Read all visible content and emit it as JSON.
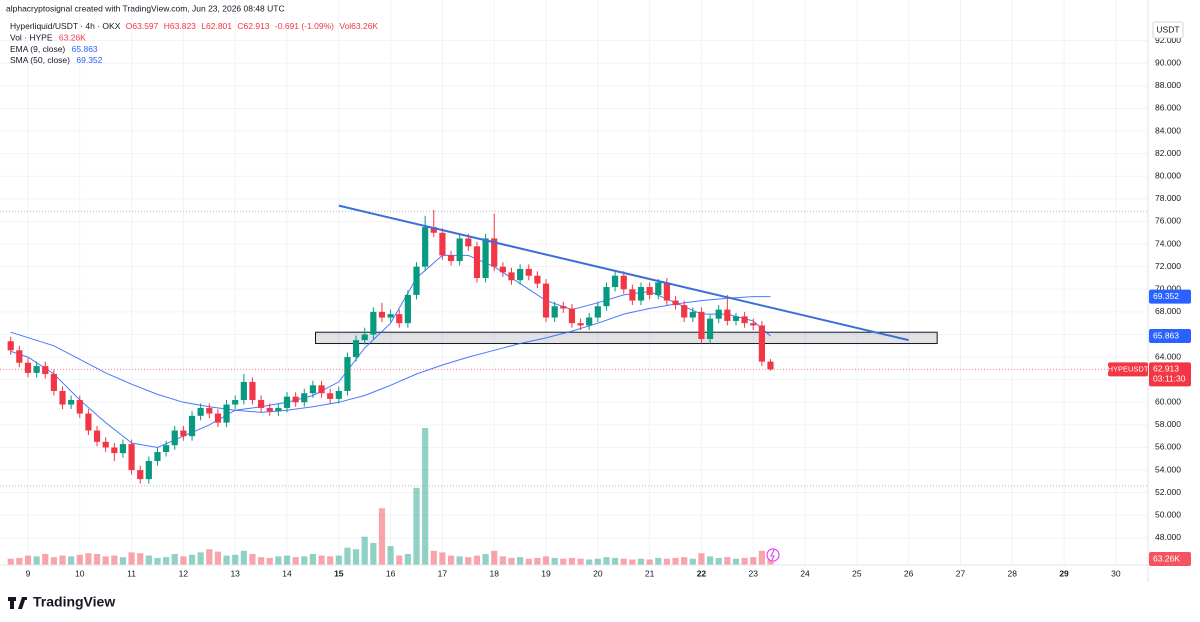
{
  "header": {
    "credit": "alphacryptosignal created with TradingView.com, Jun 23, 2026 08:48 UTC",
    "symbol": "Hyperliquid/USDT · 4h · OKX",
    "ohlc": [
      "O63.597",
      "H63.823",
      "L62.801",
      "C62.913",
      "-0.691 (-1.09%)"
    ],
    "volume_text": "Vol63.26K",
    "currency": "USDT",
    "ticker": "HYPEUSDT",
    "countdown": "03:11:30",
    "brand": "TradingView"
  },
  "chart_data": {
    "type": "candlestick",
    "xlim": [
      8.46,
      30.62
    ],
    "ylim": [
      45.6,
      95.6
    ],
    "xticks": [
      9,
      10,
      11,
      12,
      13,
      14,
      15,
      16,
      17,
      18,
      19,
      20,
      21,
      22,
      23,
      24,
      25,
      26,
      27,
      28,
      29,
      30
    ],
    "yticks": [
      {
        "value": 48,
        "label": "48.000"
      },
      {
        "value": 50,
        "label": "50.000"
      },
      {
        "value": 52,
        "label": "52.000"
      },
      {
        "value": 54,
        "label": "54.000"
      },
      {
        "value": 56,
        "label": "56.000"
      },
      {
        "value": 58,
        "label": "58.000"
      },
      {
        "value": 60,
        "label": "60.000"
      },
      {
        "value": 62,
        "label": "62.000"
      },
      {
        "value": 64,
        "label": "64.000"
      },
      {
        "value": 66,
        "label": "66.000"
      },
      {
        "value": 68,
        "label": "68.000"
      },
      {
        "value": 70,
        "label": "70.000"
      },
      {
        "value": 72,
        "label": "72.000"
      },
      {
        "value": 74,
        "label": "74.000"
      },
      {
        "value": 76,
        "label": "76.000"
      },
      {
        "value": 78,
        "label": "78.000"
      },
      {
        "value": 80,
        "label": "80.000"
      },
      {
        "value": 82,
        "label": "82.000"
      },
      {
        "value": 84,
        "label": "84.000"
      },
      {
        "value": 86,
        "label": "86.000"
      },
      {
        "value": 88,
        "label": "88.000"
      },
      {
        "value": 90,
        "label": "90.000"
      },
      {
        "value": 92,
        "label": "92.000"
      }
    ],
    "grid": true,
    "up_color": "#089981",
    "down_color": "#f23645",
    "x": [
      8.667,
      8.833,
      9,
      9.167,
      9.333,
      9.5,
      9.667,
      9.833,
      10,
      10.167,
      10.333,
      10.5,
      10.667,
      10.833,
      11,
      11.167,
      11.333,
      11.5,
      11.667,
      11.833,
      12,
      12.167,
      12.333,
      12.5,
      12.667,
      12.833,
      13,
      13.167,
      13.333,
      13.5,
      13.667,
      13.833,
      14,
      14.167,
      14.333,
      14.5,
      14.667,
      14.833,
      15,
      15.167,
      15.333,
      15.5,
      15.667,
      15.833,
      16,
      16.167,
      16.333,
      16.5,
      16.667,
      16.833,
      17,
      17.167,
      17.333,
      17.5,
      17.667,
      17.833,
      18,
      18.167,
      18.333,
      18.5,
      18.667,
      18.833,
      19,
      19.167,
      19.333,
      19.5,
      19.667,
      19.833,
      20,
      20.167,
      20.333,
      20.5,
      20.667,
      20.833,
      21,
      21.167,
      21.333,
      21.5,
      21.667,
      21.833,
      22,
      22.167,
      22.333,
      22.5,
      22.667,
      22.833,
      23,
      23.167,
      23.333
    ],
    "open": [
      65.4,
      64.6,
      63.5,
      62.6,
      63.2,
      62.5,
      61.0,
      59.8,
      60.2,
      59.0,
      57.5,
      56.5,
      56.0,
      55.5,
      56.3,
      54.0,
      53.2,
      54.8,
      55.6,
      56.2,
      57.5,
      57.0,
      58.8,
      59.5,
      59.0,
      58.2,
      59.8,
      60.2,
      61.8,
      60.2,
      59.5,
      59.2,
      59.5,
      60.5,
      60.0,
      60.8,
      61.5,
      60.8,
      60.3,
      61.0,
      64.0,
      65.5,
      66.0,
      68.0,
      67.5,
      67.8,
      67.0,
      69.5,
      72.0,
      75.5,
      75.0,
      73.0,
      72.5,
      74.5,
      73.8,
      71.0,
      74.5,
      72.0,
      71.5,
      70.8,
      71.8,
      71.2,
      70.5,
      67.5,
      68.5,
      68.3,
      67.0,
      66.8,
      67.5,
      68.5,
      70.2,
      71.2,
      70.0,
      69.0,
      70.2,
      69.5,
      70.6,
      69.0,
      68.6,
      67.5,
      68.0,
      65.6,
      67.4,
      68.2,
      67.2,
      67.6,
      67.0,
      66.8,
      63.597
    ],
    "high": [
      65.8,
      65.0,
      63.9,
      63.6,
      63.6,
      62.9,
      61.4,
      60.6,
      60.6,
      59.4,
      57.9,
      56.9,
      56.4,
      56.7,
      56.7,
      54.4,
      55.2,
      56.0,
      56.6,
      57.9,
      57.9,
      59.2,
      59.9,
      59.9,
      59.4,
      60.2,
      60.6,
      62.5,
      62.2,
      60.6,
      59.9,
      59.9,
      60.9,
      60.9,
      61.2,
      61.9,
      61.9,
      61.2,
      61.4,
      64.4,
      65.9,
      66.6,
      68.4,
      68.8,
      68.2,
      68.2,
      69.9,
      72.4,
      76.5,
      77.0,
      75.4,
      73.4,
      74.9,
      74.9,
      74.2,
      74.9,
      76.7,
      72.4,
      71.9,
      72.2,
      72.2,
      71.6,
      70.9,
      68.9,
      68.9,
      68.7,
      67.4,
      67.9,
      68.9,
      70.6,
      71.6,
      71.6,
      70.4,
      70.6,
      70.6,
      70.9,
      71.0,
      69.4,
      69.0,
      68.4,
      68.4,
      67.8,
      68.6,
      69.5,
      67.9,
      68.0,
      67.4,
      67.2,
      63.823
    ],
    "low": [
      64.2,
      63.1,
      62.2,
      62.2,
      62.1,
      60.6,
      59.4,
      59.4,
      58.6,
      57.1,
      56.1,
      55.6,
      54.8,
      55.1,
      53.6,
      52.8,
      52.8,
      54.4,
      55.2,
      55.8,
      56.6,
      56.6,
      58.4,
      58.6,
      57.8,
      57.8,
      59.4,
      59.8,
      59.8,
      59.1,
      58.8,
      58.8,
      59.1,
      59.6,
      59.6,
      60.4,
      60.4,
      59.9,
      59.9,
      60.6,
      63.6,
      65.1,
      65.6,
      67.1,
      67.1,
      66.6,
      66.6,
      69.1,
      71.6,
      74.6,
      72.6,
      72.1,
      72.1,
      73.4,
      70.6,
      70.6,
      71.6,
      71.1,
      70.4,
      70.4,
      70.8,
      70.1,
      67.1,
      67.1,
      67.9,
      66.6,
      66.4,
      66.4,
      67.1,
      68.1,
      69.8,
      69.6,
      68.6,
      68.6,
      69.1,
      69.1,
      68.6,
      68.2,
      67.1,
      67.1,
      65.2,
      65.2,
      67.0,
      66.8,
      66.8,
      66.6,
      66.4,
      63.2,
      62.801
    ],
    "close": [
      64.6,
      63.5,
      62.6,
      63.2,
      62.5,
      61.0,
      59.8,
      60.2,
      59.0,
      57.5,
      56.5,
      56.0,
      55.5,
      56.3,
      54.0,
      53.2,
      54.8,
      55.6,
      56.2,
      57.5,
      57.0,
      58.8,
      59.5,
      59.0,
      58.2,
      59.8,
      60.2,
      61.8,
      60.2,
      59.5,
      59.2,
      59.5,
      60.5,
      60.0,
      60.8,
      61.5,
      60.8,
      60.3,
      61.0,
      64.0,
      65.5,
      66.0,
      68.0,
      67.5,
      67.8,
      67.0,
      69.5,
      72.0,
      75.5,
      75.0,
      73.0,
      72.5,
      74.5,
      73.8,
      71.0,
      74.5,
      72.0,
      71.5,
      70.8,
      71.8,
      71.2,
      70.5,
      67.5,
      68.5,
      68.3,
      67.0,
      66.8,
      67.5,
      68.5,
      70.2,
      71.2,
      70.0,
      69.0,
      70.2,
      69.5,
      70.6,
      69.0,
      68.6,
      67.5,
      68.0,
      65.6,
      67.4,
      68.2,
      67.2,
      67.6,
      67.0,
      66.8,
      63.597,
      62.913
    ],
    "volume": {
      "name": "Vol · HYPE",
      "last_label": "63.26K",
      "values": [
        40,
        45,
        60,
        55,
        70,
        50,
        60,
        55,
        65,
        75,
        70,
        55,
        60,
        50,
        80,
        75,
        60,
        45,
        50,
        70,
        55,
        65,
        80,
        100,
        85,
        60,
        65,
        90,
        70,
        50,
        45,
        55,
        60,
        50,
        55,
        70,
        60,
        55,
        60,
        110,
        100,
        180,
        140,
        360,
        120,
        60,
        70,
        490,
        870,
        90,
        80,
        60,
        55,
        50,
        60,
        70,
        90,
        55,
        45,
        50,
        40,
        45,
        55,
        45,
        40,
        45,
        40,
        35,
        40,
        50,
        45,
        40,
        35,
        40,
        35,
        45,
        40,
        45,
        50,
        40,
        75,
        55,
        45,
        50,
        40,
        45,
        50,
        90,
        63.26
      ]
    },
    "lines": [
      {
        "name": "EMA (9, close)",
        "color": "#2962ff",
        "x": [
          8.667,
          9,
          9.5,
          10,
          10.5,
          11,
          11.5,
          12,
          12.5,
          13,
          13.5,
          14,
          14.5,
          15,
          15.5,
          16,
          16.5,
          17,
          17.5,
          18,
          18.5,
          19,
          19.5,
          20,
          20.5,
          21,
          21.5,
          22,
          22.5,
          23,
          23.333
        ],
        "values": [
          64.5,
          64.0,
          62.5,
          60.2,
          58.2,
          56.4,
          56.0,
          57.0,
          58.0,
          59.3,
          59.6,
          60.0,
          60.6,
          61.8,
          64.8,
          67.0,
          71.0,
          73.0,
          73.0,
          72.0,
          70.5,
          69.0,
          68.2,
          68.8,
          69.5,
          69.8,
          68.8,
          67.8,
          67.8,
          67.2,
          65.863
        ]
      },
      {
        "name": "SMA (50, close)",
        "color": "#2962ff",
        "x": [
          8.667,
          9.5,
          10,
          10.5,
          11,
          11.5,
          12,
          12.5,
          13,
          13.5,
          14,
          14.5,
          15,
          15.5,
          16,
          16.5,
          17,
          17.5,
          18,
          18.5,
          19,
          19.5,
          20,
          20.5,
          21,
          21.5,
          22,
          22.5,
          23,
          23.333
        ],
        "values": [
          66.2,
          65.0,
          63.8,
          62.6,
          61.6,
          60.7,
          60.0,
          59.6,
          59.3,
          59.1,
          59.3,
          59.6,
          60.0,
          60.6,
          61.5,
          62.5,
          63.3,
          64.0,
          64.6,
          65.2,
          65.7,
          66.3,
          67.0,
          67.8,
          68.3,
          68.7,
          69.0,
          69.2,
          69.35,
          69.352
        ]
      }
    ],
    "trendline": {
      "color": "#3a6fd8",
      "x": [
        15.0,
        26.0
      ],
      "values": [
        77.4,
        65.5
      ]
    },
    "zone": {
      "x": [
        14.55,
        26.55
      ],
      "values": [
        65.2,
        66.2
      ]
    },
    "levels": [
      76.9,
      52.6
    ]
  }
}
